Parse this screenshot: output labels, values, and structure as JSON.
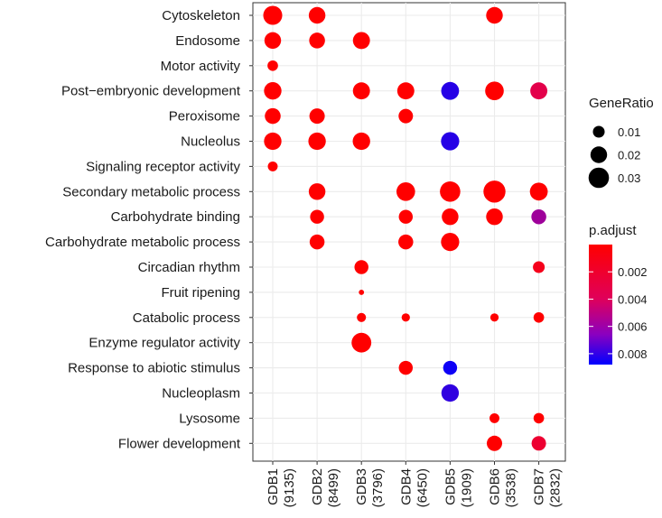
{
  "chart_data": {
    "type": "dotplot",
    "categories": [
      "Cytoskeleton",
      "Endosome",
      "Motor activity",
      "Post−embryonic development",
      "Peroxisome",
      "Nucleolus",
      "Signaling receptor activity",
      "Secondary metabolic process",
      "Carbohydrate binding",
      "Carbohydrate metabolic process",
      "Circadian rhythm",
      "Fruit ripening",
      "Catabolic process",
      "Enzyme regulator activity",
      "Response to abiotic stimulus",
      "Nucleoplasm",
      "Lysosome",
      "Flower development"
    ],
    "groups": [
      {
        "name": "GDB1",
        "count": "(9135)"
      },
      {
        "name": "GDB2",
        "count": "(8499)"
      },
      {
        "name": "GDB3",
        "count": "(3796)"
      },
      {
        "name": "GDB4",
        "count": "(6450)"
      },
      {
        "name": "GDB5",
        "count": "(1909)"
      },
      {
        "name": "GDB6",
        "count": "(3538)"
      },
      {
        "name": "GDB7",
        "count": "(2832)"
      }
    ],
    "points": [
      {
        "group": "GDB1",
        "category": "Cytoskeleton",
        "gene_ratio": 0.026,
        "p_adjust": 0.0
      },
      {
        "group": "GDB2",
        "category": "Cytoskeleton",
        "gene_ratio": 0.02,
        "p_adjust": 0.0
      },
      {
        "group": "GDB6",
        "category": "Cytoskeleton",
        "gene_ratio": 0.02,
        "p_adjust": 0.0
      },
      {
        "group": "GDB1",
        "category": "Endosome",
        "gene_ratio": 0.02,
        "p_adjust": 0.0
      },
      {
        "group": "GDB2",
        "category": "Endosome",
        "gene_ratio": 0.018,
        "p_adjust": 0.0
      },
      {
        "group": "GDB3",
        "category": "Endosome",
        "gene_ratio": 0.021,
        "p_adjust": 0.0
      },
      {
        "group": "GDB1",
        "category": "Motor activity",
        "gene_ratio": 0.008,
        "p_adjust": 0.0
      },
      {
        "group": "GDB1",
        "category": "Post−embryonic development",
        "gene_ratio": 0.022,
        "p_adjust": 0.0
      },
      {
        "group": "GDB3",
        "category": "Post−embryonic development",
        "gene_ratio": 0.021,
        "p_adjust": 0.0
      },
      {
        "group": "GDB4",
        "category": "Post−embryonic development",
        "gene_ratio": 0.021,
        "p_adjust": 0.0
      },
      {
        "group": "GDB5",
        "category": "Post−embryonic development",
        "gene_ratio": 0.023,
        "p_adjust": 0.008
      },
      {
        "group": "GDB6",
        "category": "Post−embryonic development",
        "gene_ratio": 0.025,
        "p_adjust": 0.0
      },
      {
        "group": "GDB7",
        "category": "Post−embryonic development",
        "gene_ratio": 0.021,
        "p_adjust": 0.0027
      },
      {
        "group": "GDB1",
        "category": "Peroxisome",
        "gene_ratio": 0.018,
        "p_adjust": 0.0
      },
      {
        "group": "GDB2",
        "category": "Peroxisome",
        "gene_ratio": 0.017,
        "p_adjust": 0.0
      },
      {
        "group": "GDB4",
        "category": "Peroxisome",
        "gene_ratio": 0.015,
        "p_adjust": 0.0
      },
      {
        "group": "GDB1",
        "category": "Nucleolus",
        "gene_ratio": 0.022,
        "p_adjust": 0.0
      },
      {
        "group": "GDB2",
        "category": "Nucleolus",
        "gene_ratio": 0.022,
        "p_adjust": 0.0
      },
      {
        "group": "GDB3",
        "category": "Nucleolus",
        "gene_ratio": 0.022,
        "p_adjust": 0.0
      },
      {
        "group": "GDB5",
        "category": "Nucleolus",
        "gene_ratio": 0.024,
        "p_adjust": 0.008
      },
      {
        "group": "GDB1",
        "category": "Signaling receptor activity",
        "gene_ratio": 0.007,
        "p_adjust": 0.0
      },
      {
        "group": "GDB2",
        "category": "Secondary metabolic process",
        "gene_ratio": 0.02,
        "p_adjust": 0.0
      },
      {
        "group": "GDB4",
        "category": "Secondary metabolic process",
        "gene_ratio": 0.025,
        "p_adjust": 0.0
      },
      {
        "group": "GDB5",
        "category": "Secondary metabolic process",
        "gene_ratio": 0.03,
        "p_adjust": 0.0
      },
      {
        "group": "GDB6",
        "category": "Secondary metabolic process",
        "gene_ratio": 0.035,
        "p_adjust": 0.0
      },
      {
        "group": "GDB7",
        "category": "Secondary metabolic process",
        "gene_ratio": 0.023,
        "p_adjust": 0.0
      },
      {
        "group": "GDB2",
        "category": "Carbohydrate binding",
        "gene_ratio": 0.014,
        "p_adjust": 0.0
      },
      {
        "group": "GDB4",
        "category": "Carbohydrate binding",
        "gene_ratio": 0.014,
        "p_adjust": 0.0
      },
      {
        "group": "GDB5",
        "category": "Carbohydrate binding",
        "gene_ratio": 0.02,
        "p_adjust": 0.0
      },
      {
        "group": "GDB6",
        "category": "Carbohydrate binding",
        "gene_ratio": 0.02,
        "p_adjust": 0.0
      },
      {
        "group": "GDB7",
        "category": "Carbohydrate binding",
        "gene_ratio": 0.016,
        "p_adjust": 0.0055
      },
      {
        "group": "GDB2",
        "category": "Carbohydrate metabolic process",
        "gene_ratio": 0.016,
        "p_adjust": 0.0
      },
      {
        "group": "GDB4",
        "category": "Carbohydrate metabolic process",
        "gene_ratio": 0.016,
        "p_adjust": 0.0
      },
      {
        "group": "GDB5",
        "category": "Carbohydrate metabolic process",
        "gene_ratio": 0.024,
        "p_adjust": 0.0
      },
      {
        "group": "GDB3",
        "category": "Circadian rhythm",
        "gene_ratio": 0.014,
        "p_adjust": 0.0
      },
      {
        "group": "GDB7",
        "category": "Circadian rhythm",
        "gene_ratio": 0.01,
        "p_adjust": 0.001
      },
      {
        "group": "GDB3",
        "category": "Fruit ripening",
        "gene_ratio": 0.002,
        "p_adjust": 0.0
      },
      {
        "group": "GDB3",
        "category": "Catabolic process",
        "gene_ratio": 0.006,
        "p_adjust": 0.0
      },
      {
        "group": "GDB4",
        "category": "Catabolic process",
        "gene_ratio": 0.005,
        "p_adjust": 0.0
      },
      {
        "group": "GDB6",
        "category": "Catabolic process",
        "gene_ratio": 0.005,
        "p_adjust": 0.0
      },
      {
        "group": "GDB7",
        "category": "Catabolic process",
        "gene_ratio": 0.008,
        "p_adjust": 0.0
      },
      {
        "group": "GDB3",
        "category": "Enzyme regulator activity",
        "gene_ratio": 0.028,
        "p_adjust": 0.0
      },
      {
        "group": "GDB4",
        "category": "Response to abiotic stimulus",
        "gene_ratio": 0.014,
        "p_adjust": 0.0
      },
      {
        "group": "GDB5",
        "category": "Response to abiotic stimulus",
        "gene_ratio": 0.014,
        "p_adjust": 0.0085
      },
      {
        "group": "GDB5",
        "category": "Nucleoplasm",
        "gene_ratio": 0.022,
        "p_adjust": 0.0078
      },
      {
        "group": "GDB6",
        "category": "Lysosome",
        "gene_ratio": 0.007,
        "p_adjust": 0.0
      },
      {
        "group": "GDB7",
        "category": "Lysosome",
        "gene_ratio": 0.008,
        "p_adjust": 0.0
      },
      {
        "group": "GDB6",
        "category": "Flower development",
        "gene_ratio": 0.017,
        "p_adjust": 0.0
      },
      {
        "group": "GDB7",
        "category": "Flower development",
        "gene_ratio": 0.015,
        "p_adjust": 0.0018
      }
    ],
    "size_legend": {
      "title": "GeneRatio",
      "breaks": [
        0.01,
        0.02,
        0.03
      ],
      "labels": [
        "0.01",
        "0.02",
        "0.03"
      ]
    },
    "color_legend": {
      "title": "p.adjust",
      "breaks": [
        0.002,
        0.004,
        0.006,
        0.008
      ],
      "labels": [
        "0.002",
        "0.004",
        "0.006",
        "0.008"
      ],
      "range": [
        0.0,
        0.0088
      ],
      "low_color": "#ff0000",
      "high_color": "#0000ff"
    }
  }
}
